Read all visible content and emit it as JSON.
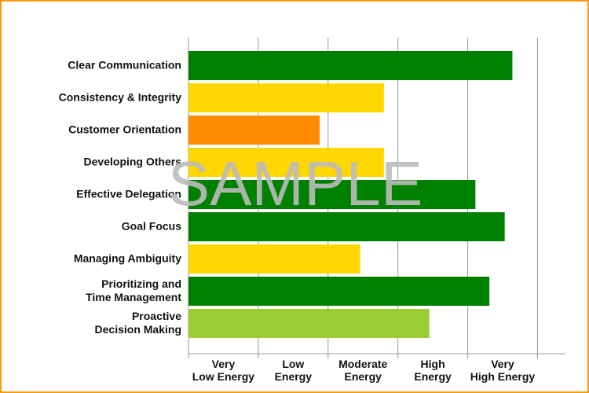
{
  "chart_data": {
    "type": "bar",
    "orientation": "horizontal",
    "categories": [
      [
        "Clear Communication"
      ],
      [
        "Consistency & Integrity"
      ],
      [
        "Customer Orientation"
      ],
      [
        "Developing Others"
      ],
      [
        "Effective Delegation"
      ],
      [
        "Goal Focus"
      ],
      [
        "Managing Ambiguity"
      ],
      [
        "Prioritizing and",
        "Time Management"
      ],
      [
        "Proactive",
        "Decision Making"
      ]
    ],
    "values": [
      4.64,
      2.8,
      1.88,
      2.8,
      4.11,
      4.53,
      2.46,
      4.31,
      3.45
    ],
    "colors": [
      "#008000",
      "#ffd700",
      "#ff8c00",
      "#ffd700",
      "#008000",
      "#008000",
      "#ffd700",
      "#008000",
      "#9acd32"
    ],
    "xlim": [
      0,
      5.4
    ],
    "xticks": [
      0,
      1,
      2,
      3,
      4,
      5
    ],
    "grid": true,
    "x_band_labels": [
      [
        "Very",
        "Low Energy"
      ],
      [
        "Low",
        "Energy"
      ],
      [
        "Moderate",
        "Energy"
      ],
      [
        "High",
        "Energy"
      ],
      [
        "Very",
        "High Energy"
      ]
    ],
    "watermark": "SAMPLE"
  }
}
